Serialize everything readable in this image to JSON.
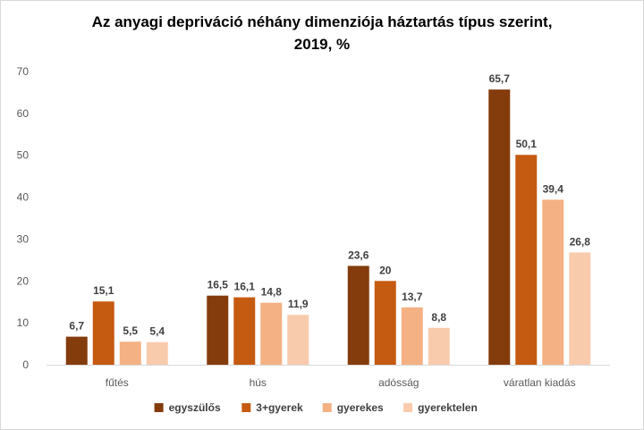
{
  "chart_data": {
    "type": "bar",
    "title_line1": "Az anyagi depriváció néhány dimenziója háztartás típus szerint,",
    "title_line2": "2019, %",
    "categories": [
      "fűtés",
      "hús",
      "adósság",
      "váratlan kiadás"
    ],
    "series": [
      {
        "name": "egyszülős",
        "color": "#843c0c",
        "values": [
          6.7,
          16.5,
          23.6,
          65.7
        ],
        "labels": [
          "6,7",
          "16,5",
          "23,6",
          "65,7"
        ]
      },
      {
        "name": "3+gyerek",
        "color": "#c55a11",
        "values": [
          15.1,
          16.1,
          20,
          50.1
        ],
        "labels": [
          "15,1",
          "16,1",
          "20",
          "50,1"
        ]
      },
      {
        "name": "gyerekes",
        "color": "#f4b183",
        "values": [
          5.5,
          14.8,
          13.7,
          39.4
        ],
        "labels": [
          "5,5",
          "14,8",
          "13,7",
          "39,4"
        ]
      },
      {
        "name": "gyerektelen",
        "color": "#f8cbad",
        "values": [
          5.4,
          11.9,
          8.8,
          26.8
        ],
        "labels": [
          "5,4",
          "11,9",
          "8,8",
          "26,8"
        ]
      }
    ],
    "ylim": [
      0,
      70
    ],
    "yticks": [
      0,
      10,
      20,
      30,
      40,
      50,
      60,
      70
    ],
    "grid": false,
    "legend_position": "bottom"
  }
}
